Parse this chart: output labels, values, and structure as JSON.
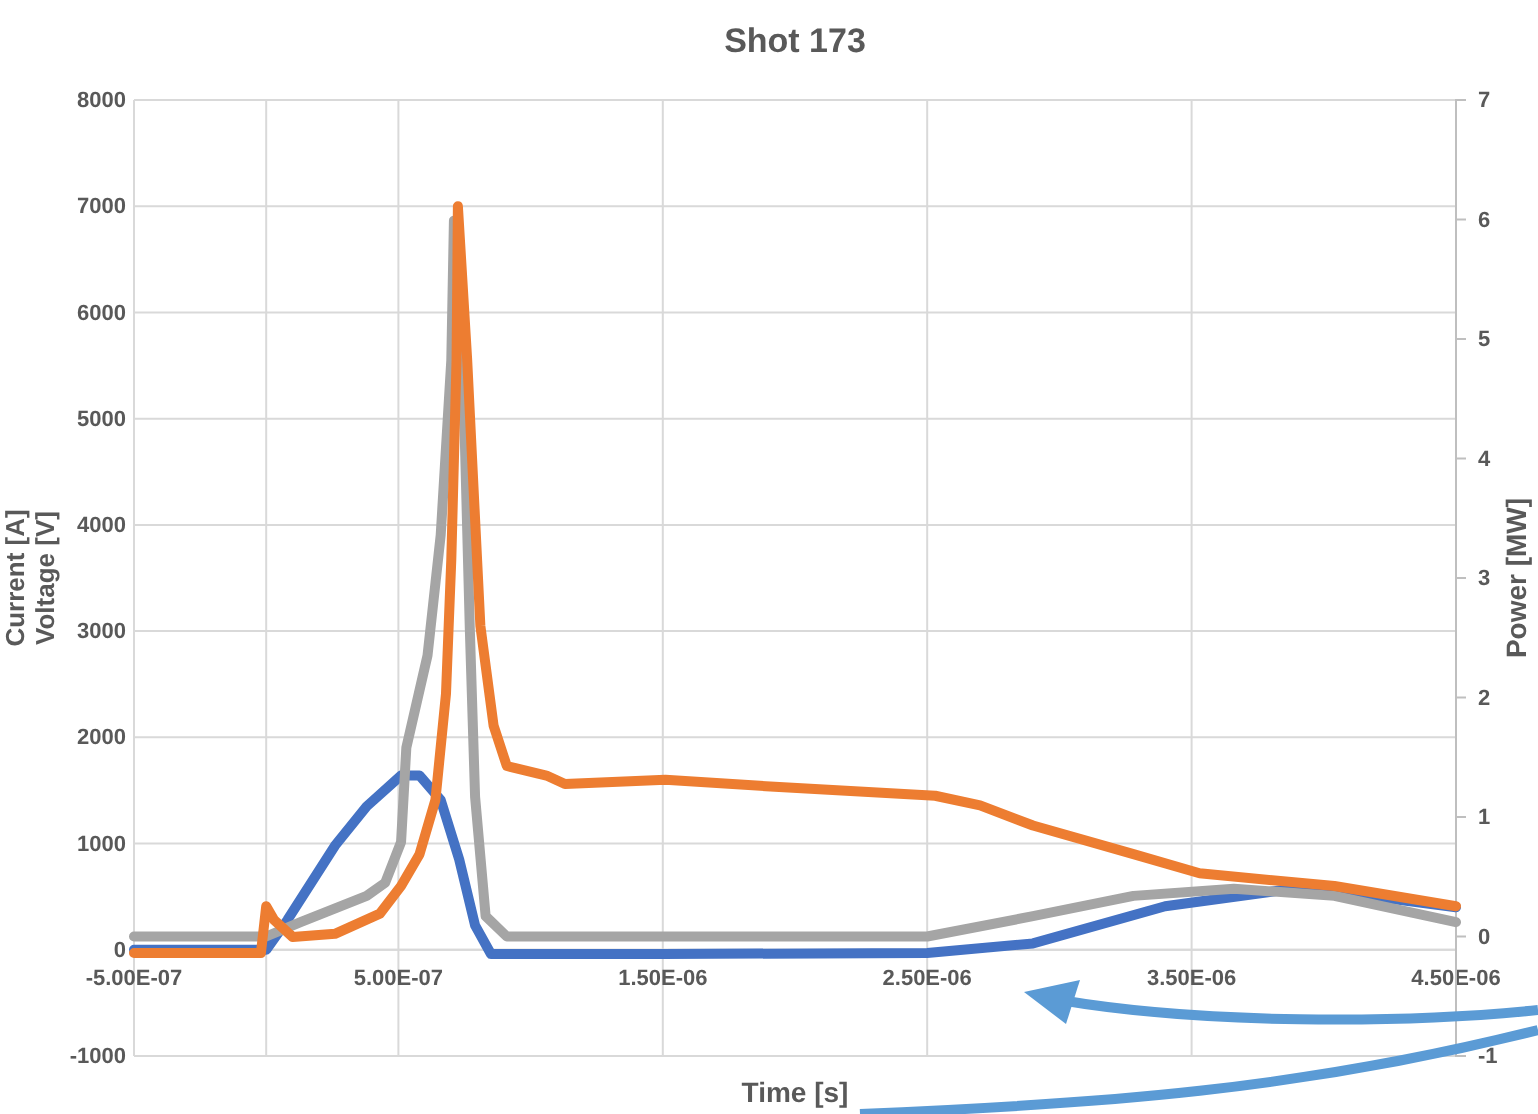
{
  "chart_data": {
    "type": "line",
    "title": "Shot 173",
    "xlabel": "Time [s]",
    "ylabel": "Current [A]\nVoltage [V]",
    "y2label": "Power [MW]",
    "xlim": [
      -5e-07,
      4.5e-06
    ],
    "xticks": [
      {
        "value": -5e-07,
        "label": "-5.00E-07"
      },
      {
        "value": 5e-07,
        "label": "5.00E-07"
      },
      {
        "value": 1.5e-06,
        "label": "1.50E-06"
      },
      {
        "value": 2.5e-06,
        "label": "2.50E-06"
      },
      {
        "value": 3.5e-06,
        "label": "3.50E-06"
      },
      {
        "value": 4.5e-06,
        "label": "4.50E-06"
      }
    ],
    "ylim": [
      -1000,
      8000
    ],
    "yticks": [
      -1000,
      0,
      1000,
      2000,
      3000,
      4000,
      5000,
      6000,
      7000,
      8000
    ],
    "y2lim": [
      -1,
      7
    ],
    "y2ticks": [
      -1,
      0,
      1,
      2,
      3,
      4,
      5,
      6,
      7
    ],
    "grid": true,
    "series": [
      {
        "color": "#4472c4",
        "x": [
          -5e-07,
          0,
          8e-08,
          2.6e-07,
          3.8e-07,
          5.1e-07,
          5.8e-07,
          6.6e-07,
          7.3e-07,
          7.9e-07,
          8.5e-07,
          1.5e-06,
          2.5e-06,
          2.9e-06,
          3.4e-06,
          3.84e-06,
          4.16e-06,
          4.5e-06
        ],
        "values": [
          0,
          0,
          280,
          980,
          1350,
          1640,
          1640,
          1410,
          850,
          230,
          -40,
          -40,
          -30,
          60,
          410,
          560,
          510,
          400
        ]
      },
      {
        "color": "#a5a5a5",
        "axis": "y2",
        "x": [
          -5e-07,
          0,
          1.3e-07,
          3.8e-07,
          4.5e-07,
          5.1e-07,
          5.3e-07,
          6.1e-07,
          6.6e-07,
          7e-07,
          7.1e-07,
          7.5e-07,
          7.7e-07,
          7.9e-07,
          8.3e-07,
          9.1e-07,
          2.5e-06,
          2.9e-06,
          3.28e-06,
          3.66e-06,
          4.04e-06,
          4.5e-06
        ],
        "values": [
          0,
          0,
          0.12,
          0.34,
          0.45,
          0.79,
          1.58,
          2.35,
          3.36,
          4.82,
          5.99,
          4.26,
          2.58,
          1.17,
          0.17,
          0,
          0,
          0.17,
          0.34,
          0.4,
          0.34,
          0.12
        ]
      },
      {
        "color": "#ed7d31",
        "x": [
          -5e-07,
          -2e-08,
          0,
          3e-08,
          1e-07,
          2.6e-07,
          4.3e-07,
          5.1e-07,
          5.8e-07,
          6.4e-07,
          6.8e-07,
          7e-07,
          7.2e-07,
          7.25e-07,
          7.6e-07,
          8.1e-07,
          8.6e-07,
          9.1e-07,
          1.06e-06,
          1.13e-06,
          1.51e-06,
          1.89e-06,
          2.53e-06,
          2.7e-06,
          2.9e-06,
          3.28e-06,
          3.53e-06,
          4.04e-06,
          4.5e-06
        ],
        "values": [
          -30,
          -30,
          410,
          280,
          120,
          150,
          340,
          600,
          900,
          1410,
          2410,
          3670,
          5560,
          7000,
          5560,
          3050,
          2110,
          1730,
          1640,
          1560,
          1600,
          1540,
          1450,
          1360,
          1170,
          900,
          720,
          600,
          410
        ]
      }
    ]
  }
}
